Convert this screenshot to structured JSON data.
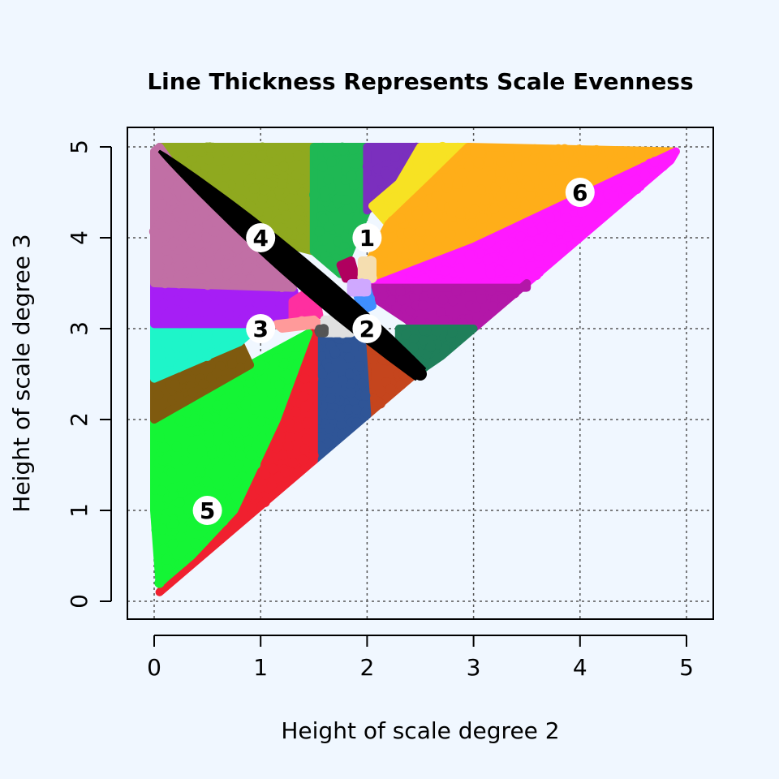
{
  "chart_data": {
    "type": "scatter",
    "title": "Line Thickness Represents Scale Evenness",
    "xlabel": "Height of scale degree 2",
    "ylabel": "Height of scale degree 3",
    "xlim": [
      0,
      5
    ],
    "ylim": [
      0,
      5
    ],
    "xticks": [
      0,
      1,
      2,
      3,
      4,
      5
    ],
    "yticks": [
      0,
      1,
      2,
      3,
      4,
      5
    ],
    "grid": true,
    "regions": [
      {
        "color": "#8fa91f",
        "polygon": [
          [
            0.05,
            5.0
          ],
          [
            1.5,
            5.0
          ],
          [
            1.5,
            3.85
          ],
          [
            1.0,
            4.0
          ],
          [
            0.3,
            4.6
          ]
        ]
      },
      {
        "color": "#1fb854",
        "polygon": [
          [
            1.5,
            5.0
          ],
          [
            2.0,
            5.0
          ],
          [
            2.0,
            4.3
          ],
          [
            1.75,
            3.6
          ],
          [
            1.5,
            3.85
          ]
        ]
      },
      {
        "color": "#7b2fbe",
        "polygon": [
          [
            2.0,
            5.0
          ],
          [
            2.5,
            5.0
          ],
          [
            2.3,
            4.6
          ],
          [
            2.05,
            4.35
          ],
          [
            2.0,
            4.3
          ]
        ]
      },
      {
        "color": "#f7e223",
        "polygon": [
          [
            2.5,
            5.0
          ],
          [
            2.95,
            5.0
          ],
          [
            2.6,
            4.6
          ],
          [
            2.2,
            4.15
          ],
          [
            2.05,
            4.35
          ],
          [
            2.3,
            4.6
          ]
        ]
      },
      {
        "color": "#ffae19",
        "polygon": [
          [
            2.95,
            5.0
          ],
          [
            4.9,
            4.95
          ],
          [
            3.0,
            3.9
          ],
          [
            2.0,
            3.45
          ],
          [
            2.0,
            3.7
          ],
          [
            2.2,
            4.15
          ],
          [
            2.6,
            4.6
          ]
        ]
      },
      {
        "color": "#ff19ff",
        "polygon": [
          [
            4.9,
            4.95
          ],
          [
            4.85,
            4.85
          ],
          [
            3.5,
            3.5
          ],
          [
            2.1,
            3.45
          ],
          [
            2.0,
            3.45
          ],
          [
            3.0,
            3.9
          ]
        ]
      },
      {
        "color": "#b317a8",
        "polygon": [
          [
            2.0,
            3.45
          ],
          [
            3.5,
            3.45
          ],
          [
            3.5,
            3.5
          ],
          [
            3.0,
            3.0
          ],
          [
            2.5,
            3.0
          ],
          [
            2.05,
            3.35
          ]
        ]
      },
      {
        "color": "#1f7f5a",
        "polygon": [
          [
            2.3,
            3.0
          ],
          [
            3.0,
            3.0
          ],
          [
            2.7,
            2.7
          ],
          [
            2.45,
            2.5
          ],
          [
            2.3,
            2.7
          ]
        ]
      },
      {
        "color": "#c5451d",
        "polygon": [
          [
            2.0,
            2.9
          ],
          [
            2.45,
            2.5
          ],
          [
            2.05,
            2.1
          ],
          [
            2.0,
            2.05
          ],
          [
            1.95,
            2.7
          ]
        ]
      },
      {
        "color": "#2f5597",
        "polygon": [
          [
            1.5,
            3.05
          ],
          [
            1.95,
            2.9
          ],
          [
            2.0,
            2.05
          ],
          [
            1.5,
            1.55
          ],
          [
            1.5,
            2.5
          ]
        ]
      },
      {
        "color": "#f0202f",
        "polygon": [
          [
            1.5,
            3.05
          ],
          [
            1.5,
            1.55
          ],
          [
            0.05,
            0.1
          ],
          [
            0.35,
            0.5
          ],
          [
            0.75,
            1.0
          ],
          [
            0.95,
            1.3
          ],
          [
            1.15,
            2.0
          ],
          [
            1.45,
            2.9
          ]
        ]
      },
      {
        "color": "#14f535",
        "polygon": [
          [
            0.0,
            2.0
          ],
          [
            0.3,
            2.2
          ],
          [
            0.9,
            2.6
          ],
          [
            1.45,
            2.95
          ],
          [
            1.15,
            2.0
          ],
          [
            0.75,
            1.0
          ],
          [
            0.35,
            0.5
          ],
          [
            0.05,
            0.2
          ],
          [
            0.0,
            1.0
          ]
        ]
      },
      {
        "color": "#7f5a0f",
        "polygon": [
          [
            0.0,
            2.45
          ],
          [
            0.8,
            2.85
          ],
          [
            0.9,
            2.6
          ],
          [
            0.3,
            2.2
          ],
          [
            0.0,
            2.0
          ]
        ]
      },
      {
        "color": "#1ef5c9",
        "polygon": [
          [
            0.0,
            3.05
          ],
          [
            1.0,
            3.05
          ],
          [
            0.8,
            2.85
          ],
          [
            0.0,
            2.45
          ]
        ]
      },
      {
        "color": "#a61ef5",
        "polygon": [
          [
            0.0,
            3.5
          ],
          [
            1.3,
            3.45
          ],
          [
            1.4,
            3.1
          ],
          [
            1.0,
            3.05
          ],
          [
            0.0,
            3.05
          ]
        ]
      },
      {
        "color": "#c16fa5",
        "polygon": [
          [
            0.0,
            4.95
          ],
          [
            0.05,
            5.0
          ],
          [
            0.3,
            4.6
          ],
          [
            1.0,
            4.0
          ],
          [
            1.4,
            3.7
          ],
          [
            1.3,
            3.45
          ],
          [
            0.0,
            3.5
          ]
        ]
      },
      {
        "color": "#ff2fa0",
        "polygon": [
          [
            1.3,
            3.3
          ],
          [
            1.5,
            3.45
          ],
          [
            1.55,
            3.15
          ],
          [
            1.3,
            3.1
          ]
        ]
      },
      {
        "color": "#ff9a9a",
        "polygon": [
          [
            1.15,
            3.05
          ],
          [
            1.5,
            3.1
          ],
          [
            1.55,
            3.05
          ],
          [
            1.2,
            3.0
          ]
        ]
      },
      {
        "color": "#3f8fff",
        "polygon": [
          [
            1.9,
            3.4
          ],
          [
            2.0,
            3.45
          ],
          [
            2.05,
            3.25
          ],
          [
            1.95,
            3.2
          ]
        ]
      },
      {
        "color": "#b0005f",
        "polygon": [
          [
            1.75,
            3.7
          ],
          [
            1.85,
            3.75
          ],
          [
            1.9,
            3.55
          ],
          [
            1.8,
            3.55
          ]
        ]
      },
      {
        "color": "#f5deb0",
        "polygon": [
          [
            1.95,
            3.75
          ],
          [
            2.05,
            3.75
          ],
          [
            2.05,
            3.55
          ],
          [
            1.95,
            3.55
          ]
        ]
      },
      {
        "color": "#cfa8ff",
        "polygon": [
          [
            1.85,
            3.5
          ],
          [
            2.0,
            3.5
          ],
          [
            2.0,
            3.4
          ],
          [
            1.85,
            3.4
          ]
        ]
      },
      {
        "color": "#e0e0e0",
        "polygon": [
          [
            1.6,
            3.1
          ],
          [
            1.85,
            3.1
          ],
          [
            1.85,
            2.95
          ],
          [
            1.6,
            2.95
          ]
        ]
      },
      {
        "color": "#555555",
        "polygon": [
          [
            1.55,
            3.0
          ],
          [
            1.6,
            3.0
          ],
          [
            1.6,
            2.95
          ],
          [
            1.55,
            2.95
          ]
        ]
      }
    ],
    "thick_line": {
      "from": [
        0.05,
        4.95
      ],
      "to": [
        2.5,
        2.5
      ],
      "color": "#000000"
    },
    "markers": [
      {
        "label": "1",
        "x": 2.0,
        "y": 4.0
      },
      {
        "label": "2",
        "x": 2.0,
        "y": 3.0
      },
      {
        "label": "3",
        "x": 1.0,
        "y": 3.0
      },
      {
        "label": "4",
        "x": 1.0,
        "y": 4.0
      },
      {
        "label": "5",
        "x": 0.5,
        "y": 1.0
      },
      {
        "label": "6",
        "x": 4.0,
        "y": 4.5
      }
    ]
  }
}
